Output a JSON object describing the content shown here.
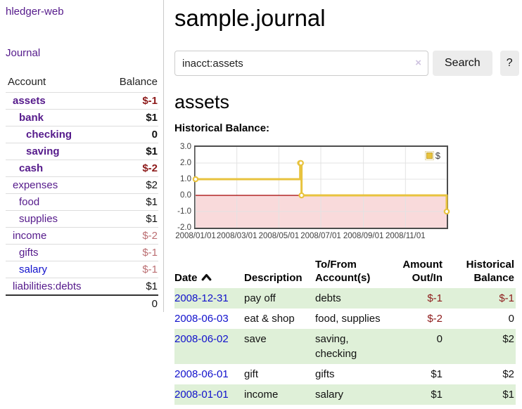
{
  "brand": "hledger-web",
  "sidebar": {
    "journal_label": "Journal",
    "table": {
      "account_header": "Account",
      "balance_header": "Balance",
      "rows": [
        {
          "account": "assets",
          "balance": "$-1",
          "level": 1,
          "bold": true,
          "link_style": "purple",
          "balance_style": "neg-strong"
        },
        {
          "account": "bank",
          "balance": "$1",
          "level": 2,
          "bold": true,
          "link_style": "purple",
          "balance_style": "pos-strong"
        },
        {
          "account": "checking",
          "balance": "0",
          "level": 3,
          "bold": true,
          "link_style": "purple",
          "balance_style": "pos-strong"
        },
        {
          "account": "saving",
          "balance": "$1",
          "level": 3,
          "bold": true,
          "link_style": "purple",
          "balance_style": "pos-strong"
        },
        {
          "account": "cash",
          "balance": "$-2",
          "level": 2,
          "bold": true,
          "link_style": "purple",
          "balance_style": "neg-strong"
        },
        {
          "account": "expenses",
          "balance": "$2",
          "level": 1,
          "bold": false,
          "link_style": "purple",
          "balance_style": "plain"
        },
        {
          "account": "food",
          "balance": "$1",
          "level": 2,
          "bold": false,
          "link_style": "purple",
          "balance_style": "plain"
        },
        {
          "account": "supplies",
          "balance": "$1",
          "level": 2,
          "bold": false,
          "link_style": "purple",
          "balance_style": "plain"
        },
        {
          "account": "income",
          "balance": "$-2",
          "level": 1,
          "bold": false,
          "link_style": "purple",
          "balance_style": "neg-soft"
        },
        {
          "account": "gifts",
          "balance": "$-1",
          "level": 2,
          "bold": false,
          "link_style": "purple",
          "balance_style": "neg-soft"
        },
        {
          "account": "salary",
          "balance": "$-1",
          "level": 2,
          "bold": false,
          "link_style": "blue",
          "balance_style": "neg-soft"
        },
        {
          "account": "liabilities:debts",
          "balance": "$1",
          "level": 1,
          "bold": false,
          "link_style": "purple",
          "balance_style": "plain"
        }
      ],
      "total": "0"
    }
  },
  "header": {
    "title": "sample.journal"
  },
  "search": {
    "value": "inacct:assets",
    "clear_icon": "×",
    "button_label": "Search",
    "help_label": "?"
  },
  "account_page": {
    "heading": "assets",
    "chart_label": "Historical Balance:"
  },
  "chart_data": {
    "type": "line",
    "step": true,
    "title": "Historical Balance:",
    "series": [
      {
        "name": "$",
        "color": "#e8c33e",
        "points": [
          [
            "2008-01-01",
            1
          ],
          [
            "2008-06-01",
            2
          ],
          [
            "2008-06-02",
            2
          ],
          [
            "2008-06-03",
            0
          ],
          [
            "2008-12-31",
            -1
          ]
        ]
      }
    ],
    "x_range": [
      "2008-01-01",
      "2008-12-31"
    ],
    "ylim": [
      -2,
      3
    ],
    "yticks": [
      "3.0",
      "2.0",
      "1.0",
      "0.0",
      "-1.0",
      "-2.0"
    ],
    "xtick_dates": [
      "2008-01-01",
      "2008-03-01",
      "2008-05-01",
      "2008-07-01",
      "2008-09-01",
      "2008-11-01"
    ],
    "xtick_labels": [
      "2008/01/01",
      "2008/03/01",
      "2008/05/01",
      "2008/07/01",
      "2008/09/01",
      "2008/11/01"
    ],
    "legend": {
      "label": "$",
      "position": "top-right"
    },
    "grid": true,
    "negative_region_color": "#f9dadb",
    "zero_line_color": "#a40000",
    "grid_color": "#e3e3e3",
    "border_color": "#4d4d4d"
  },
  "transactions": {
    "columns": {
      "date": "Date",
      "description": "Description",
      "accounts": "To/From Account(s)",
      "amount": "Amount Out/In",
      "balance": "Historical Balance"
    },
    "sort_icon": "chevron-up",
    "rows": [
      {
        "date": "2008-12-31",
        "description": "pay off",
        "accounts": "debts",
        "amount": "$-1",
        "balance": "$-1"
      },
      {
        "date": "2008-06-03",
        "description": "eat & shop",
        "accounts": "food, supplies",
        "amount": "$-2",
        "balance": "0"
      },
      {
        "date": "2008-06-02",
        "description": "save",
        "accounts": "saving, checking",
        "amount": "0",
        "balance": "$2"
      },
      {
        "date": "2008-06-01",
        "description": "gift",
        "accounts": "gifts",
        "amount": "$1",
        "balance": "$2"
      },
      {
        "date": "2008-01-01",
        "description": "income",
        "accounts": "salary",
        "amount": "$1",
        "balance": "$1"
      }
    ]
  },
  "colors": {
    "link_purple": "#551a8b",
    "link_blue": "#1111cc",
    "negative_strong": "#8d1a1a",
    "negative_soft": "#bb6e72",
    "row_stripe_green": "#dff0d8",
    "series_gold": "#e8c33e"
  }
}
